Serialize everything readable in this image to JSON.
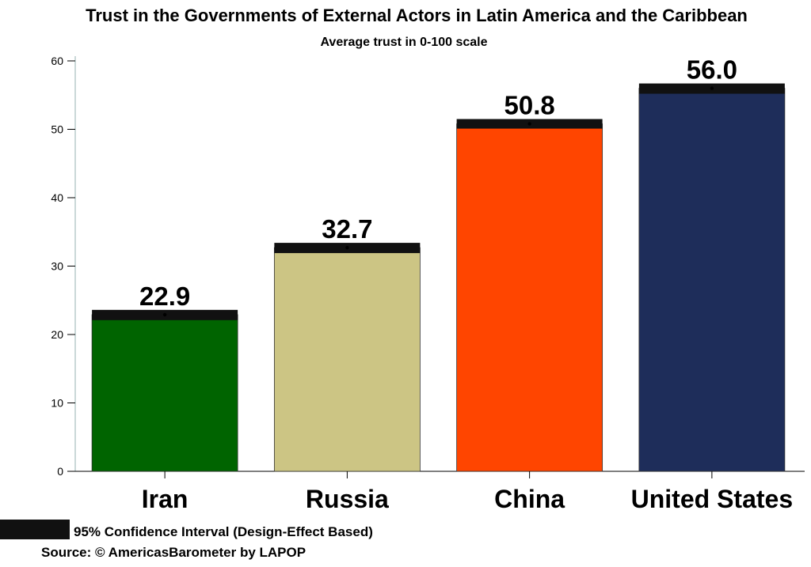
{
  "chart_data": {
    "type": "bar",
    "title": "Trust in the Governments of External Actors in Latin America and the Caribbean",
    "subtitle": "Average trust in 0-100 scale",
    "categories": [
      "Iran",
      "Russia",
      "China",
      "United States"
    ],
    "values": [
      22.9,
      32.7,
      50.8,
      56.0
    ],
    "value_labels": [
      "22.9",
      "32.7",
      "50.8",
      "56.0"
    ],
    "ci_low": [
      22.1,
      31.9,
      50.1,
      55.2
    ],
    "ci_high": [
      23.6,
      33.4,
      51.5,
      56.7
    ],
    "colors": [
      "#006400",
      "#CCC584",
      "#FF4500",
      "#1E2D5A"
    ],
    "ylim": [
      0,
      60
    ],
    "yticks": [
      0,
      10,
      20,
      30,
      40,
      50,
      60
    ],
    "ytick_labels": [
      "0",
      "10",
      "20",
      "30",
      "40",
      "50",
      "60"
    ],
    "xlabel": "",
    "ylabel": "",
    "grid": false,
    "legend": {
      "label": "95% Confidence Interval (Design-Effect Based)",
      "color": "#111111",
      "placement": "bottom-left"
    },
    "source": "Source: © AmericasBarometer by LAPOP"
  }
}
